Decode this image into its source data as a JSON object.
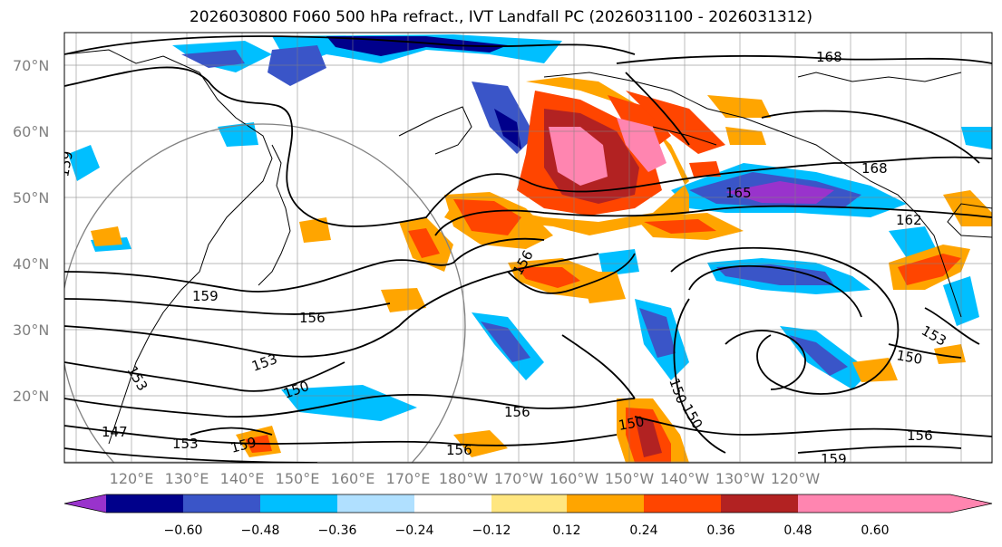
{
  "title": "2026030800 F060 500 hPa refract., IVT Landfall PC (2026031100 - 2026031312)",
  "map": {
    "lat_ticks": [
      "70°N",
      "60°N",
      "50°N",
      "40°N",
      "30°N",
      "20°N"
    ],
    "lon_ticks": [
      "120°E",
      "130°E",
      "140°E",
      "150°E",
      "160°E",
      "170°E",
      "180°W",
      "170°W",
      "160°W",
      "150°W",
      "140°W",
      "130°W",
      "120°W"
    ],
    "contour_labels": [
      "168",
      "168",
      "165",
      "162",
      "159",
      "156",
      "156",
      "153",
      "153",
      "150",
      "150",
      "150",
      "147",
      "153",
      "159",
      "156",
      "156",
      "159",
      "150",
      "153",
      "156",
      "150",
      "159"
    ]
  },
  "colorbar": {
    "tick_labels": [
      "−0.60",
      "−0.48",
      "−0.36",
      "−0.24",
      "−0.12",
      "0.12",
      "0.24",
      "0.36",
      "0.48",
      "0.60"
    ],
    "colors": [
      "#9933cc",
      "#00008b",
      "#3a55c8",
      "#00bfff",
      "#b0e0ff",
      "#ffffff",
      "#ffe680",
      "#ffa500",
      "#ff4500",
      "#b22222",
      "#ff85b0"
    ]
  },
  "colors": {
    "coast": "#000000",
    "grid": "#808080",
    "contour": "#000000",
    "circle": "#808080"
  }
}
